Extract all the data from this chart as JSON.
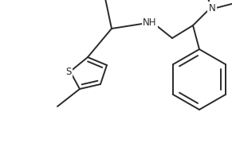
{
  "figsize": [
    2.91,
    1.8
  ],
  "dpi": 100,
  "background": "#ffffff",
  "line_color": "#2a2a2a",
  "line_width": 1.4,
  "font_size": 8.5,
  "font_color": "#2a2a2a",
  "xlim": [
    0,
    291
  ],
  "ylim": [
    0,
    180
  ]
}
